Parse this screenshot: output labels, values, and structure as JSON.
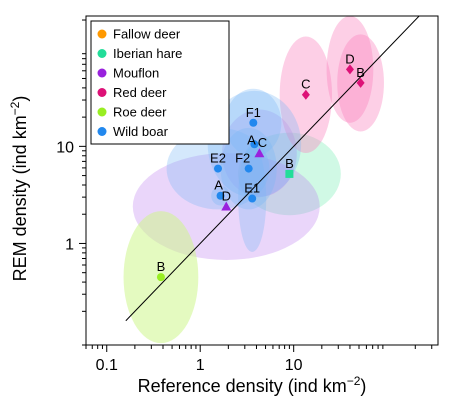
{
  "chart_data": {
    "type": "scatter",
    "x_scale": "log",
    "y_scale": "log",
    "xlim": [
      0.06,
      350
    ],
    "ylim": [
      0.09,
      220
    ],
    "x_ticks": [
      0.1,
      1,
      10
    ],
    "x_tick_labels": [
      "0.1",
      "1",
      "10"
    ],
    "y_ticks": [
      1,
      10
    ],
    "y_tick_labels": [
      "1",
      "10"
    ],
    "xlabel": {
      "main": "Reference density (ind km",
      "sup": "−2",
      "close": ")"
    },
    "ylabel": {
      "main": "REM density (ind km",
      "sup": "−2",
      "close": ")"
    },
    "identity_line": {
      "x": [
        0.16,
        260
      ],
      "y": [
        0.16,
        260
      ]
    },
    "legend": {
      "position": "top-left",
      "frame": true
    },
    "series": [
      {
        "name": "Fallow deer",
        "color": "#ff9900",
        "fill": "rgba(255,170,80,0.35)",
        "marker": "circle",
        "points": []
      },
      {
        "name": "Iberian hare",
        "color": "#22dd99",
        "fill": "rgba(110,235,175,0.32)",
        "marker": "square",
        "points": [
          {
            "label": "B",
            "x": 9.0,
            "y": 5.2,
            "ex": [
              0.55,
              0.55
            ],
            "ey": [
              0.45,
              0.4
            ]
          }
        ]
      },
      {
        "name": "Mouflon",
        "color": "#9922dd",
        "fill": "rgba(185,120,240,0.30)",
        "marker": "triangle",
        "points": [
          {
            "label": "C",
            "x": 4.3,
            "y": 8.5,
            "ex": [
              0.4,
              0.4
            ],
            "ey": [
              0.45,
              0.45
            ]
          },
          {
            "label": "D",
            "x": 1.9,
            "y": 2.4,
            "ex": [
              1.0,
              1.0
            ],
            "ey": [
              0.55,
              0.55
            ]
          }
        ]
      },
      {
        "name": "Red deer",
        "color": "#dd1177",
        "fill": "rgba(250,130,190,0.38)",
        "marker": "diamond",
        "points": [
          {
            "label": "C",
            "x": 13.5,
            "y": 34,
            "ex": [
              0.28,
              0.28
            ],
            "ey": [
              0.6,
              0.6
            ]
          },
          {
            "label": "D",
            "x": 40,
            "y": 62,
            "ex": [
              0.25,
              0.25
            ],
            "ey": [
              0.55,
              0.55
            ]
          },
          {
            "label": "B",
            "x": 52,
            "y": 45,
            "ex": [
              0.25,
              0.25
            ],
            "ey": [
              0.5,
              0.5
            ]
          }
        ]
      },
      {
        "name": "Roe deer",
        "color": "#99ee22",
        "fill": "rgba(205,245,140,0.55)",
        "marker": "circle",
        "points": [
          {
            "label": "B",
            "x": 0.38,
            "y": 0.45,
            "ex": [
              0.4,
              0.4
            ],
            "ey": [
              0.68,
              0.68
            ]
          }
        ]
      },
      {
        "name": "Wild boar",
        "color": "#2288ee",
        "fill": "rgba(120,185,245,0.32)",
        "marker": "circle",
        "points": [
          {
            "label": "F1",
            "x": 3.7,
            "y": 17.5,
            "ex": [
              0.3,
              0.3
            ],
            "ey": [
              0.35,
              0.35
            ]
          },
          {
            "label": "A",
            "x": 3.8,
            "y": 10.5,
            "ex": [
              0.5,
              0.5
            ],
            "ey": [
              0.55,
              0.55
            ]
          },
          {
            "label": "F2",
            "x": 3.3,
            "y": 5.9,
            "ex": [
              0.3,
              0.3
            ],
            "ey": [
              0.42,
              0.42
            ]
          },
          {
            "label": "E2",
            "x": 1.55,
            "y": 5.9,
            "ex": [
              0.55,
              0.55
            ],
            "ey": [
              0.42,
              0.42
            ]
          },
          {
            "label": "A",
            "x": 1.65,
            "y": 3.1,
            "ex": [
              0.1,
              0.1
            ],
            "ey": [
              0.1,
              0.1
            ]
          },
          {
            "label": "E1",
            "x": 3.6,
            "y": 2.9,
            "ex": [
              0.15,
              0.15
            ],
            "ey": [
              0.55,
              0.55
            ]
          }
        ]
      }
    ],
    "label_positions": "mostly above point; wild boar A at 1.65 and mouflon C offset"
  }
}
